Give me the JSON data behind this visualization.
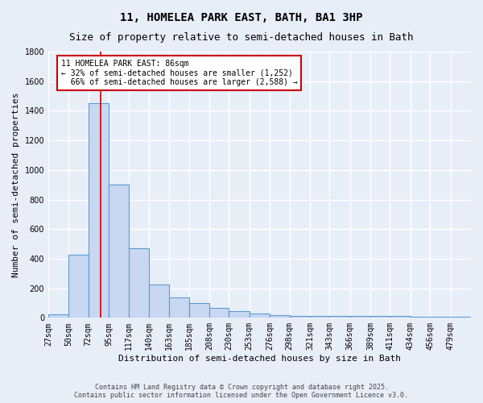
{
  "title": "11, HOMELEA PARK EAST, BATH, BA1 3HP",
  "subtitle": "Size of property relative to semi-detached houses in Bath",
  "xlabel": "Distribution of semi-detached houses by size in Bath",
  "ylabel": "Number of semi-detached properties",
  "bar_labels": [
    "27sqm",
    "50sqm",
    "72sqm",
    "95sqm",
    "117sqm",
    "140sqm",
    "163sqm",
    "185sqm",
    "208sqm",
    "230sqm",
    "253sqm",
    "276sqm",
    "298sqm",
    "321sqm",
    "343sqm",
    "366sqm",
    "389sqm",
    "411sqm",
    "434sqm",
    "456sqm",
    "479sqm"
  ],
  "bar_values": [
    25,
    425,
    1450,
    900,
    470,
    225,
    140,
    100,
    65,
    45,
    30,
    20,
    15,
    15,
    12,
    10,
    10,
    10,
    5,
    5,
    5
  ],
  "bin_edges": [
    27,
    50,
    72,
    95,
    117,
    140,
    163,
    185,
    208,
    230,
    253,
    276,
    298,
    321,
    343,
    366,
    389,
    411,
    434,
    456,
    479,
    502
  ],
  "bar_color": "#c8d8f0",
  "bar_edge_color": "#5b9bd5",
  "property_line_x": 86,
  "annotation_line1": "11 HOMELEA PARK EAST: 86sqm",
  "annotation_line2": "← 32% of semi-detached houses are smaller (1,252)",
  "annotation_line3": "  66% of semi-detached houses are larger (2,588) →",
  "annotation_box_color": "#ffffff",
  "annotation_box_edge": "#cc0000",
  "ylim": [
    0,
    1800
  ],
  "yticks": [
    0,
    200,
    400,
    600,
    800,
    1000,
    1200,
    1400,
    1600,
    1800
  ],
  "bg_color": "#e8eef8",
  "grid_color": "#ffffff",
  "footer_line1": "Contains HM Land Registry data © Crown copyright and database right 2025.",
  "footer_line2": "Contains public sector information licensed under the Open Government Licence v3.0.",
  "title_fontsize": 10,
  "subtitle_fontsize": 9,
  "axis_label_fontsize": 8,
  "tick_fontsize": 7,
  "annotation_fontsize": 7,
  "footer_fontsize": 6
}
